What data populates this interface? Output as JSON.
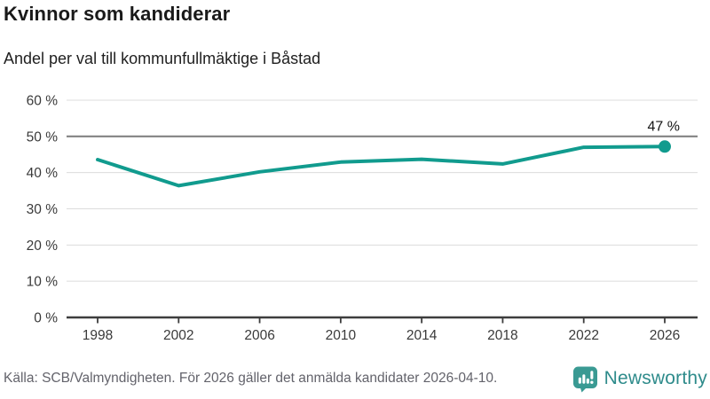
{
  "header": {
    "title": "Kvinnor som kandiderar",
    "subtitle": "Andel per val till kommunfullmäktige i Båstad"
  },
  "chart_data": {
    "type": "line",
    "title": "Kvinnor som kandiderar",
    "subtitle": "Andel per val till kommunfullmäktige i Båstad",
    "x": [
      1998,
      2002,
      2006,
      2010,
      2014,
      2018,
      2022,
      2026
    ],
    "xtick_labels": [
      "1998",
      "2002",
      "2006",
      "2010",
      "2014",
      "2018",
      "2022",
      "2026"
    ],
    "values": [
      43.6,
      36.4,
      40.2,
      42.9,
      43.7,
      42.4,
      47.0,
      47.2
    ],
    "ylim": [
      0,
      60
    ],
    "ytick_step": 10,
    "ytick_suffix": " %",
    "reference_line_y": 50,
    "end_point_label": "47 %",
    "line_color": "#119b8e",
    "grid": true,
    "legend_position": "none"
  },
  "footer": {
    "source": "Källa: SCB/Valmyndigheten. För 2026 gäller det anmälda kandidater 2026-04-10.",
    "brand_name": "Newsworthy",
    "brand_color": "#2e8b8b",
    "brand_icon": "bar-chart-speech-bubble-icon",
    "brand_icon_color": "#3a9a93"
  }
}
